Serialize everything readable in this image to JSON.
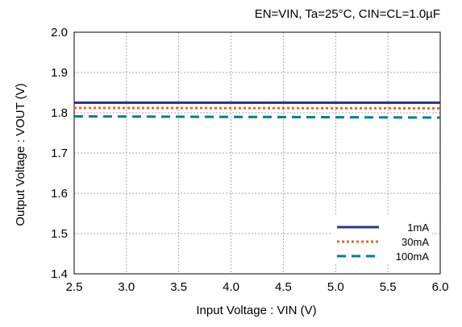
{
  "chart_data": {
    "type": "line",
    "conditions": "EN=VIN, Ta=25°C, CIN=CL=1.0µF",
    "xlabel": "Input Voltage : VIN (V)",
    "ylabel": "Output Voltage : VOUT (V)",
    "xlim": [
      2.5,
      6.0
    ],
    "ylim": [
      1.4,
      2.0
    ],
    "x_ticks": [
      "2.5",
      "3.0",
      "3.5",
      "4.0",
      "4.5",
      "5.0",
      "5.5",
      "6.0"
    ],
    "y_ticks": [
      "2.0",
      "1.9",
      "1.8",
      "1.7",
      "1.6",
      "1.5",
      "1.4"
    ],
    "grid": true,
    "legend_position": "bottom-right",
    "series": [
      {
        "name": "1mA",
        "color": "#2E3192",
        "style": "solid",
        "x": [
          2.5,
          6.0
        ],
        "values": [
          1.825,
          1.825
        ]
      },
      {
        "name": "30mA",
        "color": "#F26522",
        "style": "dotted",
        "x": [
          2.5,
          6.0
        ],
        "values": [
          1.812,
          1.811
        ]
      },
      {
        "name": "100mA",
        "color": "#00827F",
        "style": "dashed",
        "x": [
          2.5,
          6.0
        ],
        "values": [
          1.791,
          1.788
        ]
      }
    ]
  }
}
